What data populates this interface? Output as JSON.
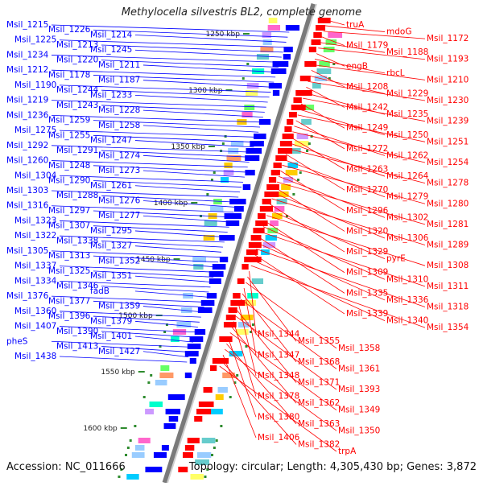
{
  "title": "Methylocella silvestris BL2, complete genome",
  "accession": "Accession: NC_011666",
  "topology": "Topology: circular; Length: 4,305,430 bp; Genes: 3,872",
  "colors": {
    "forward": "#0000ff",
    "reverse": "#ff0000",
    "backbone": "#7a7a7a",
    "tick": "#2e8b2e"
  },
  "ticks": [
    "1250 kbp",
    "1300 kbp",
    "1350 kbp",
    "1400 kbp",
    "1450 kbp",
    "1500 kbp",
    "1550 kbp",
    "1600 kbp"
  ],
  "left_labels": [
    "Msil_1215",
    "Msil_1226",
    "Msil_1214",
    "Msil_1225",
    "Msil_1213",
    "Msil_1245",
    "Msil_1234",
    "Msil_1220",
    "Msil_1211",
    "Msil_1212",
    "Msil_1178",
    "Msil_1187",
    "Msil_1190",
    "Msil_1244",
    "Msil_1233",
    "Msil_1219",
    "Msil_1243",
    "Msil_1228",
    "Msil_1236",
    "Msil_1259",
    "Msil_1258",
    "Msil_1275",
    "Msil_1255",
    "Msil_1247",
    "Msil_1292",
    "Msil_1291",
    "Msil_1274",
    "Msil_1260",
    "Msil_1248",
    "Msil_1273",
    "Msil_1304",
    "Msil_1290",
    "Msil_1261",
    "Msil_1303",
    "Msil_1288",
    "Msil_1276",
    "Msil_1316",
    "Msil_1297",
    "Msil_1277",
    "Msil_1323",
    "Msil_1307",
    "Msil_1295",
    "Msil_1322",
    "Msil_1338",
    "Msil_1327",
    "Msil_1305",
    "Msil_1313",
    "Msil_1352",
    "Msil_1337",
    "Msil_1325",
    "Msil_1351",
    "Msil_1334",
    "Msil_1346",
    "fadB",
    "Msil_1376",
    "Msil_1377",
    "Msil_1359",
    "Msil_1360",
    "Msil_1396",
    "Msil_1379",
    "Msil_1407",
    "Msil_1390",
    "Msil_1401",
    "pheS",
    "Msil_1413",
    "Msil_1427",
    "Msil_1438"
  ],
  "right_labels": [
    "truA",
    "mdoG",
    "Msil_1172",
    "Msil_1179",
    "Msil_1188",
    "Msil_1193",
    "engB",
    "rbcL",
    "Msil_1210",
    "Msil_1208",
    "Msil_1229",
    "Msil_1230",
    "Msil_1242",
    "Msil_1235",
    "Msil_1239",
    "Msil_1249",
    "Msil_1250",
    "Msil_1251",
    "Msil_1272",
    "Msil_1262",
    "Msil_1254",
    "Msil_1263",
    "Msil_1264",
    "Msil_1278",
    "Msil_1270",
    "Msil_1279",
    "Msil_1280",
    "Msil_1296",
    "Msil_1302",
    "Msil_1281",
    "Msil_1320",
    "Msil_1306",
    "Msil_1289",
    "Msil_1329",
    "pyrE",
    "Msil_1308",
    "Msil_1309",
    "Msil_1310",
    "Msil_1311",
    "Msil_1335",
    "Msil_1336",
    "Msil_1318",
    "Msil_1339",
    "Msil_1340",
    "Msil_1354",
    "Msil_1344",
    "Msil_1355",
    "Msil_1358",
    "Msil_1347",
    "Msil_1368",
    "Msil_1361",
    "Msil_1348",
    "Msil_1371",
    "Msil_1393",
    "Msil_1378",
    "Msil_1362",
    "Msil_1349",
    "Msil_1380",
    "Msil_1363",
    "Msil_1350",
    "Msil_1406",
    "Msil_1382",
    "trpA"
  ]
}
